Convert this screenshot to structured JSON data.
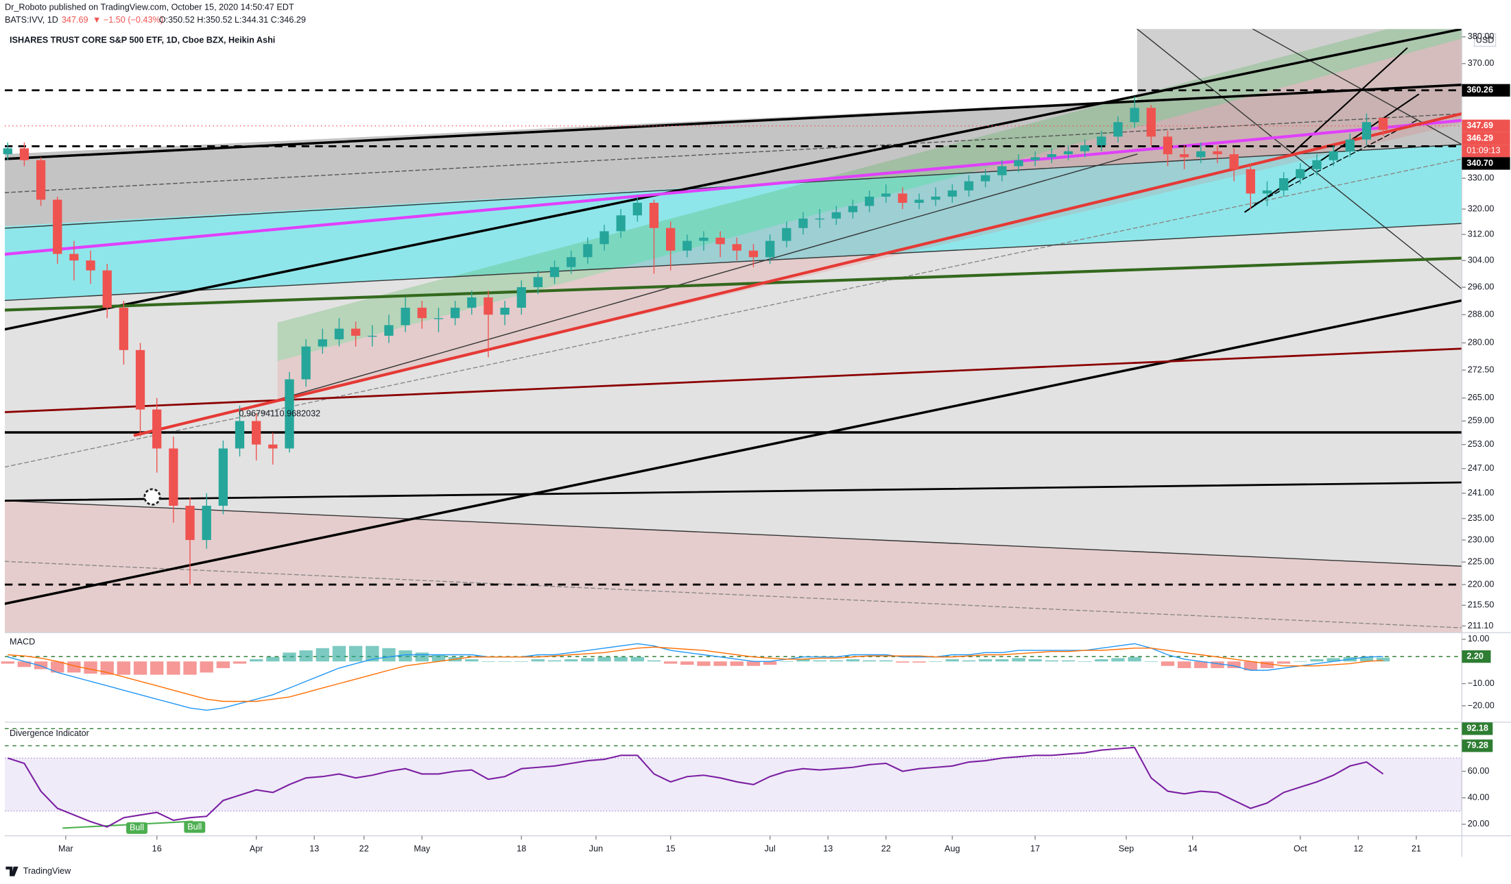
{
  "header": {
    "publisher": "Dr_Roboto published on TradingView.com, October 15, 2020 14:50:47 EDT",
    "symbol": "BATS:IVV, 1D",
    "last": "347.69",
    "change": "▼ −1.50 (−0.43%)",
    "ohlc": "O:350.52 H:350.52 L:344.31 C:346.29"
  },
  "footer": {
    "brand": "TradingView"
  },
  "chart_data": [
    {
      "type": "candlestick",
      "title": "ISHARES TRUST CORE S&P 500 ETF, 1D, Cboe BZX, Heikin Ashi",
      "currency": "USD",
      "log_scale": true,
      "up_color": "#26a69a",
      "down_color": "#ef5350",
      "x": [
        0,
        2,
        4,
        6,
        8,
        10,
        12,
        14,
        16,
        18,
        20,
        22,
        24,
        26,
        28,
        30,
        32,
        34,
        36,
        38,
        40,
        42,
        44,
        46,
        48,
        50,
        52,
        54,
        56,
        58,
        60,
        62,
        64,
        66,
        68,
        70,
        72,
        74,
        76,
        78,
        80,
        82,
        84,
        86,
        88,
        90,
        92,
        94,
        96,
        98,
        100,
        102,
        104,
        106,
        108,
        110,
        112,
        114,
        116,
        118,
        120,
        122,
        124,
        126,
        128,
        130,
        132,
        134,
        136,
        138,
        140,
        142,
        144,
        146,
        148,
        150,
        152,
        154,
        156,
        158,
        160,
        162,
        164,
        166
      ],
      "open": [
        338,
        340,
        336,
        323,
        306,
        304,
        301,
        290,
        278,
        262,
        252,
        238,
        230,
        238,
        252,
        259,
        253,
        252,
        270,
        279,
        281,
        284,
        282,
        282,
        285,
        290,
        287,
        287,
        290,
        293,
        288,
        290,
        296,
        299,
        302,
        305,
        309,
        313,
        318,
        322,
        314,
        307,
        310,
        311,
        309,
        307,
        305,
        310,
        314,
        317,
        317,
        319,
        321,
        324,
        325,
        322,
        323,
        324,
        326,
        329,
        331,
        334,
        336,
        337,
        338,
        339,
        341,
        344,
        349,
        354,
        344,
        338,
        337,
        339,
        338,
        333,
        325,
        326,
        330,
        333,
        336,
        339,
        343,
        350.52
      ],
      "close": [
        340,
        336,
        323,
        306,
        304,
        301,
        290,
        278,
        262,
        252,
        238,
        230,
        238,
        252,
        259,
        253,
        252,
        270,
        279,
        281,
        284,
        282,
        282,
        285,
        290,
        287,
        287,
        290,
        293,
        288,
        290,
        296,
        299,
        302,
        305,
        309,
        313,
        318,
        322,
        314,
        307,
        310,
        311,
        309,
        307,
        305,
        310,
        314,
        317,
        317,
        319,
        321,
        324,
        325,
        322,
        323,
        324,
        326,
        329,
        331,
        334,
        336,
        337,
        338,
        339,
        341,
        344,
        349,
        354,
        344,
        338,
        337,
        339,
        338,
        333,
        325,
        326,
        330,
        333,
        336,
        339,
        343,
        349,
        346.29
      ],
      "high": [
        342,
        342,
        337,
        324,
        310,
        307,
        303,
        292,
        280,
        265,
        255,
        240,
        241,
        254,
        263,
        261,
        256,
        272,
        281,
        284,
        287,
        286,
        285,
        288,
        293,
        292,
        290,
        292,
        295,
        295,
        292,
        298,
        301,
        304,
        307,
        311,
        315,
        320,
        324,
        323,
        316,
        312,
        313,
        313,
        311,
        309,
        312,
        316,
        319,
        320,
        321,
        323,
        326,
        328,
        327,
        325,
        327,
        328,
        331,
        333,
        336,
        338,
        339,
        340,
        341,
        343,
        346,
        351,
        358,
        355,
        346,
        341,
        342,
        341,
        340,
        335,
        329,
        332,
        335,
        338,
        341,
        345,
        352,
        350.52
      ],
      "low": [
        336,
        334,
        321,
        303,
        298,
        297,
        287,
        274,
        255,
        246,
        234,
        220,
        228,
        236,
        250,
        249,
        248,
        251,
        268,
        277,
        279,
        279,
        279,
        280,
        283,
        284,
        283,
        285,
        288,
        276,
        285,
        288,
        294,
        297,
        300,
        303,
        307,
        311,
        316,
        300,
        301,
        305,
        307,
        305,
        304,
        302,
        303,
        308,
        312,
        314,
        315,
        317,
        319,
        322,
        320,
        320,
        321,
        322,
        324,
        327,
        329,
        332,
        334,
        335,
        336,
        337,
        339,
        342,
        347,
        341,
        334,
        333,
        335,
        335,
        329,
        320,
        321,
        324,
        328,
        331,
        334,
        337,
        341,
        344.31
      ],
      "xlim": [
        -0.35,
        175.5
      ],
      "ylim": [
        209.7,
        383.0
      ],
      "yticks": [
        {
          "value": 380,
          "label": "380.00"
        },
        {
          "value": 370,
          "label": "370.00"
        },
        {
          "value": 330,
          "label": "330.00"
        },
        {
          "value": 320,
          "label": "320.00"
        },
        {
          "value": 312,
          "label": "312.00"
        },
        {
          "value": 304,
          "label": "304.00"
        },
        {
          "value": 296,
          "label": "296.00"
        },
        {
          "value": 288,
          "label": "288.00"
        },
        {
          "value": 280,
          "label": "280.00"
        },
        {
          "value": 272.5,
          "label": "272.50"
        },
        {
          "value": 265,
          "label": "265.00"
        },
        {
          "value": 259,
          "label": "259.00"
        },
        {
          "value": 253,
          "label": "253.00"
        },
        {
          "value": 247,
          "label": "247.00"
        },
        {
          "value": 241,
          "label": "241.00"
        },
        {
          "value": 235,
          "label": "235.00"
        },
        {
          "value": 230,
          "label": "230.00"
        },
        {
          "value": 225,
          "label": "225.00"
        },
        {
          "value": 220,
          "label": "220.00"
        },
        {
          "value": 215.5,
          "label": "215.50"
        },
        {
          "value": 211.1,
          "label": "211.10"
        }
      ],
      "xticks": [
        {
          "value": 7,
          "label": "Mar"
        },
        {
          "value": 18,
          "label": "16"
        },
        {
          "value": 30,
          "label": "Apr"
        },
        {
          "value": 37,
          "label": "13"
        },
        {
          "value": 43,
          "label": "22"
        },
        {
          "value": 50,
          "label": "May"
        },
        {
          "value": 62,
          "label": "18"
        },
        {
          "value": 71,
          "label": "Jun"
        },
        {
          "value": 80,
          "label": "15"
        },
        {
          "value": 92,
          "label": "Jul"
        },
        {
          "value": 99,
          "label": "13"
        },
        {
          "value": 106,
          "label": "22"
        },
        {
          "value": 114,
          "label": "Aug"
        },
        {
          "value": 124,
          "label": "17"
        },
        {
          "value": 135,
          "label": "Sep"
        },
        {
          "value": 143,
          "label": "14"
        },
        {
          "value": 156,
          "label": "Oct"
        },
        {
          "value": 163,
          "label": "12"
        },
        {
          "value": 170,
          "label": "21"
        }
      ],
      "hlines": [
        {
          "value": 360.26,
          "style": "dashed",
          "color": "#000000"
        },
        {
          "value": 340.7,
          "style": "dashed",
          "color": "#000000"
        },
        {
          "value": 220,
          "style": "dashed",
          "color": "#000000"
        },
        {
          "value": 347.69,
          "style": "dotted",
          "color": "#ef5350"
        }
      ],
      "price_tags": [
        {
          "value": 360.26,
          "color": "#000000"
        },
        {
          "value": 347.69,
          "color": "#ef5350"
        },
        {
          "value": 346.29,
          "color": "#ef5350"
        },
        {
          "value": 340.7,
          "label": "340.70",
          "color": "#000000"
        }
      ],
      "countdown": "01:09:13",
      "fib_labels": [
        "0.9679411",
        "0.9682032"
      ]
    },
    {
      "type": "macd",
      "title": "MACD",
      "x": [
        0,
        2,
        4,
        6,
        8,
        10,
        12,
        14,
        16,
        18,
        20,
        22,
        24,
        26,
        28,
        30,
        32,
        34,
        36,
        38,
        40,
        42,
        44,
        46,
        48,
        50,
        52,
        54,
        56,
        58,
        60,
        62,
        64,
        66,
        68,
        70,
        72,
        74,
        76,
        78,
        80,
        82,
        84,
        86,
        88,
        90,
        92,
        94,
        96,
        98,
        100,
        102,
        104,
        106,
        108,
        110,
        112,
        114,
        116,
        118,
        120,
        122,
        124,
        126,
        128,
        130,
        132,
        134,
        136,
        138,
        140,
        142,
        144,
        146,
        148,
        150,
        152,
        154,
        156,
        158,
        160,
        162,
        164,
        166
      ],
      "xlim": [
        -0.35,
        175.5
      ],
      "ylim": [
        -27.4,
        13.0
      ],
      "yticks": [
        {
          "value": 10,
          "label": "10.00"
        },
        {
          "value": -10,
          "label": "−10.00"
        },
        {
          "value": -20,
          "label": "−20.00"
        }
      ],
      "level": {
        "value": 2.2,
        "label": "2.20",
        "color": "#2e7d32"
      },
      "histogram": {
        "up_color": "#26a69a",
        "down_color": "#ef5350",
        "values": [
          -1,
          -2.5,
          -3.5,
          -5,
          -5,
          -5.5,
          -6,
          -6,
          -6,
          -6,
          -6,
          -6,
          -5,
          -3,
          -1,
          1,
          2,
          4,
          5,
          6,
          7,
          7,
          7,
          6,
          5,
          4,
          3,
          2,
          1,
          0,
          0,
          0,
          1,
          0.5,
          1,
          1.5,
          2,
          2,
          2,
          0.5,
          -1,
          -1.5,
          -2,
          -2,
          -2,
          -2,
          -1.5,
          0,
          1,
          0.5,
          0.5,
          1,
          0.5,
          0.5,
          -0.5,
          -0.5,
          0,
          1,
          0.5,
          1,
          1,
          1.5,
          1,
          0.5,
          0.5,
          0,
          1,
          1.5,
          2,
          0,
          -2,
          -3,
          -3,
          -3,
          -3,
          -4,
          -3,
          -1,
          0,
          1,
          1.5,
          2,
          2,
          1.7
        ]
      },
      "series": [
        {
          "color": "#2196f3",
          "values": [
            2,
            0,
            -2,
            -5,
            -7,
            -9,
            -11,
            -13,
            -15,
            -17,
            -19,
            -21,
            -22,
            -21,
            -19,
            -17,
            -15,
            -12,
            -9,
            -6,
            -3,
            -1,
            1,
            2,
            3,
            3,
            3,
            3,
            3,
            2,
            2,
            2,
            3,
            3,
            4,
            5,
            6,
            7,
            8,
            7,
            5,
            4,
            3,
            2,
            1,
            0,
            0,
            1,
            2,
            2,
            2,
            3,
            3,
            3,
            2,
            2,
            2,
            3,
            3,
            4,
            4,
            5,
            5,
            5,
            5,
            5,
            6,
            7,
            8,
            6,
            3,
            1,
            0,
            -1,
            -2,
            -4,
            -4,
            -3,
            -2,
            -1,
            0,
            1,
            2,
            2.2
          ]
        },
        {
          "color": "#ff6d00",
          "values": [
            3,
            2.5,
            1.5,
            0,
            -2,
            -3.5,
            -5,
            -7,
            -9,
            -11,
            -13,
            -15,
            -17,
            -18,
            -18,
            -18,
            -17,
            -16,
            -14,
            -12,
            -10,
            -8,
            -6,
            -4,
            -2,
            -1,
            0,
            1,
            2,
            2,
            2,
            2,
            2,
            2.5,
            3,
            3.5,
            4,
            5,
            6,
            6.5,
            6,
            5.5,
            5,
            4,
            3,
            2,
            1.5,
            1,
            1,
            1.5,
            1.5,
            2,
            2.5,
            2.5,
            2.5,
            2.5,
            2,
            2,
            2.5,
            3,
            3,
            3.5,
            4,
            4.5,
            4.5,
            5,
            5,
            5.5,
            6,
            6,
            5,
            4,
            3,
            2,
            1,
            0,
            -1,
            -2,
            -2,
            -2,
            -1.5,
            -1,
            0,
            0.5
          ]
        }
      ]
    },
    {
      "type": "line",
      "title": "Divergence Indicator",
      "x": [
        0,
        2,
        4,
        6,
        8,
        10,
        12,
        14,
        16,
        18,
        20,
        22,
        24,
        26,
        28,
        30,
        32,
        34,
        36,
        38,
        40,
        42,
        44,
        46,
        48,
        50,
        52,
        54,
        56,
        58,
        60,
        62,
        64,
        66,
        68,
        70,
        72,
        74,
        76,
        78,
        80,
        82,
        84,
        86,
        88,
        90,
        92,
        94,
        96,
        98,
        100,
        102,
        104,
        106,
        108,
        110,
        112,
        114,
        116,
        118,
        120,
        122,
        124,
        126,
        128,
        130,
        132,
        134,
        136,
        138,
        140,
        142,
        144,
        146,
        148,
        150,
        152,
        154,
        156,
        158,
        160,
        162,
        164,
        166
      ],
      "xlim": [
        -0.35,
        175.5
      ],
      "ylim": [
        11.3,
        97.1
      ],
      "yticks": [
        {
          "value": 20,
          "label": "20.00"
        },
        {
          "value": 40,
          "label": "40.00"
        },
        {
          "value": 60,
          "label": "60.00"
        }
      ],
      "band": [
        30,
        70
      ],
      "band_color": "#7e57c2",
      "levels": [
        {
          "value": 92.18,
          "color": "#2e7d32"
        },
        {
          "value": 79.28,
          "color": "#2e7d32"
        }
      ],
      "annotations": [
        "Bull",
        "Bull"
      ],
      "series": [
        {
          "color": "#7b1fa2",
          "values": [
            70,
            66,
            45,
            32,
            27,
            22,
            18,
            25,
            27,
            29,
            23,
            25,
            26,
            38,
            42,
            46,
            44,
            50,
            55,
            56,
            58,
            55,
            57,
            60,
            62,
            58,
            58,
            60,
            61,
            54,
            56,
            62,
            63,
            64,
            66,
            68,
            69,
            72,
            72,
            58,
            52,
            56,
            57,
            55,
            52,
            50,
            56,
            60,
            62,
            61,
            62,
            63,
            65,
            66,
            60,
            62,
            63,
            64,
            67,
            68,
            70,
            71,
            72,
            72,
            73,
            74,
            76,
            77,
            78,
            55,
            45,
            43,
            45,
            44,
            38,
            32,
            36,
            44,
            48,
            52,
            57,
            64,
            67,
            58
          ]
        }
      ]
    }
  ]
}
